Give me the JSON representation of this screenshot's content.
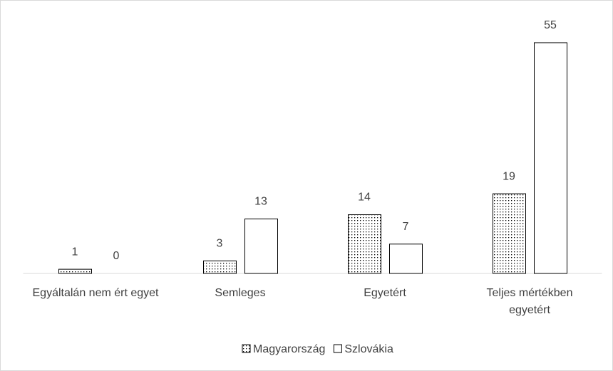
{
  "chart_data": {
    "type": "bar",
    "categories": [
      "Egyáltalán nem ért egyet",
      "Semleges",
      "Egyetért",
      "Teljes mértékben egyetért"
    ],
    "series": [
      {
        "name": "Magyarország",
        "color": "#ffffff",
        "pattern": "dots",
        "values": [
          1,
          3,
          14,
          19
        ]
      },
      {
        "name": "Szlovákia",
        "color": "#ffffff",
        "values": [
          0,
          13,
          7,
          55
        ]
      }
    ],
    "ylim": [
      0,
      60
    ],
    "legend": "bottom"
  }
}
